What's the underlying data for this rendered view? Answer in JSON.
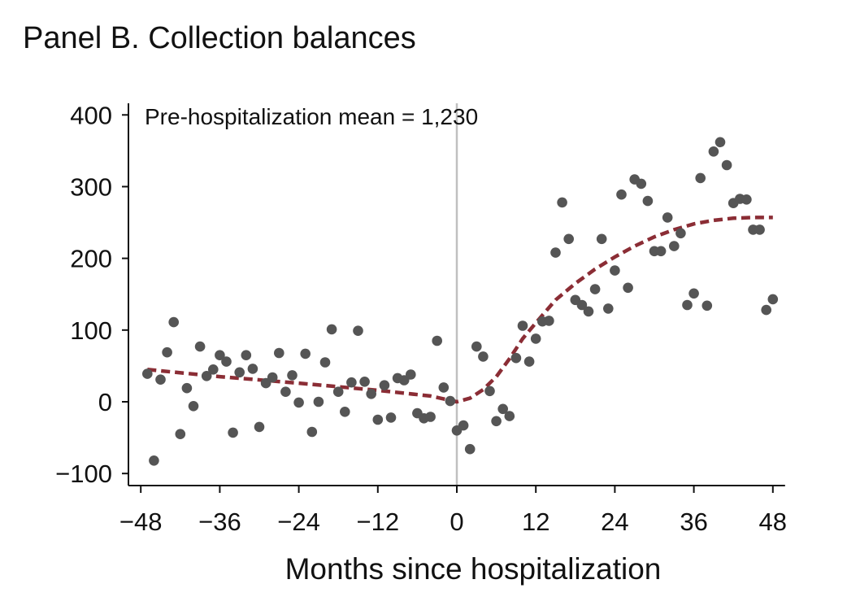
{
  "panel_title": "Panel B. Collection balances",
  "chart_data": {
    "type": "scatter",
    "xlabel": "Months since hospitalization",
    "ylabel": "",
    "annotation": "Pre-hospitalization mean = 1,230",
    "xlim": [
      -48,
      48
    ],
    "ylim": [
      -100,
      400
    ],
    "xticks": [
      -48,
      -36,
      -24,
      -12,
      0,
      12,
      24,
      36,
      48
    ],
    "xtick_labels": [
      "−48",
      "−36",
      "−24",
      "−12",
      "0",
      "12",
      "24",
      "36",
      "48"
    ],
    "yticks": [
      -100,
      0,
      100,
      200,
      300,
      400
    ],
    "ytick_labels": [
      "−100",
      "0",
      "100",
      "200",
      "300",
      "400"
    ],
    "reference_line_x": 0,
    "colors": {
      "points": "#555555",
      "fit_line": "#8b2d35",
      "reference_line": "#c0c0c0",
      "axis": "#111111"
    },
    "points": [
      [
        -47,
        39
      ],
      [
        -46,
        -82
      ],
      [
        -45,
        31
      ],
      [
        -44,
        69
      ],
      [
        -43,
        111
      ],
      [
        -42,
        -45
      ],
      [
        -41,
        19
      ],
      [
        -40,
        -6
      ],
      [
        -39,
        77
      ],
      [
        -38,
        36
      ],
      [
        -37,
        45
      ],
      [
        -36,
        65
      ],
      [
        -35,
        56
      ],
      [
        -34,
        -43
      ],
      [
        -33,
        41
      ],
      [
        -32,
        65
      ],
      [
        -31,
        46
      ],
      [
        -30,
        -35
      ],
      [
        -29,
        26
      ],
      [
        -28,
        34
      ],
      [
        -27,
        68
      ],
      [
        -26,
        14
      ],
      [
        -25,
        37
      ],
      [
        -24,
        -1
      ],
      [
        -23,
        67
      ],
      [
        -22,
        -42
      ],
      [
        -21,
        0
      ],
      [
        -20,
        55
      ],
      [
        -19,
        101
      ],
      [
        -18,
        14
      ],
      [
        -17,
        -14
      ],
      [
        -16,
        27
      ],
      [
        -15,
        99
      ],
      [
        -14,
        28
      ],
      [
        -13,
        11
      ],
      [
        -12,
        -25
      ],
      [
        -11,
        23
      ],
      [
        -10,
        -22
      ],
      [
        -9,
        33
      ],
      [
        -8,
        30
      ],
      [
        -7,
        38
      ],
      [
        -6,
        -16
      ],
      [
        -5,
        -23
      ],
      [
        -4,
        -21
      ],
      [
        -3,
        85
      ],
      [
        -2,
        20
      ],
      [
        -1,
        1
      ],
      [
        0,
        -40
      ],
      [
        1,
        -33
      ],
      [
        2,
        -66
      ],
      [
        3,
        77
      ],
      [
        4,
        63
      ],
      [
        5,
        15
      ],
      [
        6,
        -27
      ],
      [
        7,
        -10
      ],
      [
        8,
        -20
      ],
      [
        9,
        61
      ],
      [
        10,
        106
      ],
      [
        11,
        56
      ],
      [
        12,
        88
      ],
      [
        13,
        112
      ],
      [
        14,
        113
      ],
      [
        15,
        208
      ],
      [
        16,
        278
      ],
      [
        17,
        227
      ],
      [
        18,
        142
      ],
      [
        19,
        135
      ],
      [
        20,
        126
      ],
      [
        21,
        157
      ],
      [
        22,
        227
      ],
      [
        23,
        130
      ],
      [
        24,
        183
      ],
      [
        25,
        289
      ],
      [
        26,
        159
      ],
      [
        27,
        310
      ],
      [
        28,
        304
      ],
      [
        29,
        280
      ],
      [
        30,
        210
      ],
      [
        31,
        210
      ],
      [
        32,
        257
      ],
      [
        33,
        217
      ],
      [
        34,
        235
      ],
      [
        35,
        135
      ],
      [
        36,
        151
      ],
      [
        37,
        312
      ],
      [
        38,
        134
      ],
      [
        39,
        349
      ],
      [
        40,
        362
      ],
      [
        41,
        330
      ],
      [
        42,
        277
      ],
      [
        43,
        283
      ],
      [
        44,
        282
      ],
      [
        45,
        240
      ],
      [
        46,
        240
      ],
      [
        47,
        128
      ],
      [
        48,
        143
      ]
    ],
    "fit_line": {
      "style": "dashed",
      "x": [
        -47,
        -36,
        -24,
        -12,
        -4,
        -1,
        0,
        2,
        4,
        6,
        8,
        10,
        12,
        15,
        18,
        21,
        24,
        27,
        30,
        33,
        36,
        39,
        42,
        45,
        48
      ],
      "y": [
        45,
        35,
        26,
        16,
        8,
        2,
        0,
        5,
        17,
        35,
        60,
        88,
        110,
        142,
        165,
        185,
        202,
        217,
        230,
        240,
        248,
        253,
        256,
        257,
        257
      ]
    }
  }
}
